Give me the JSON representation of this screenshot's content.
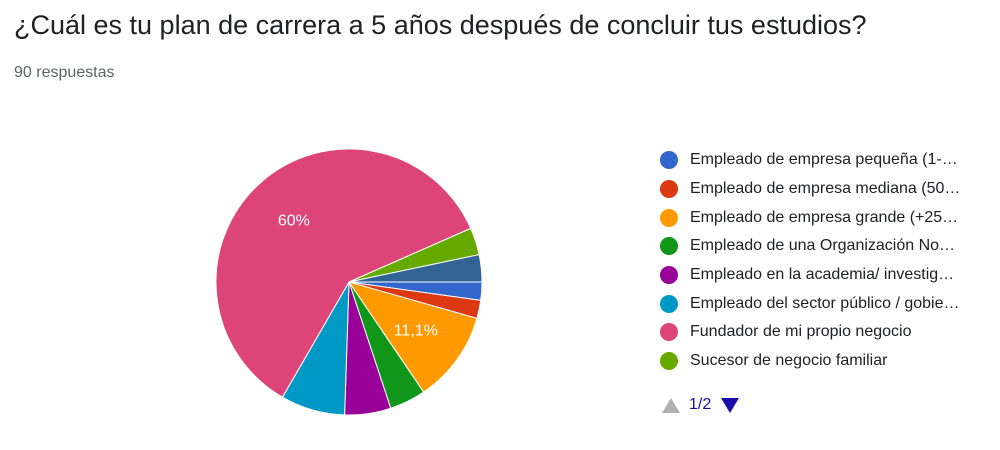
{
  "question": {
    "title": "¿Cuál es tu plan de carrera a 5 años después de concluir tus estudios?",
    "responses": "90 respuestas"
  },
  "chart_data": {
    "type": "pie",
    "slices": [
      {
        "label": "Empleado de empresa pequeña (1-…",
        "value": 2.2,
        "color": "#3366cc"
      },
      {
        "label": "Empleado de empresa mediana (50…",
        "value": 2.2,
        "color": "#dc3912"
      },
      {
        "label": "Empleado de empresa grande (+25…",
        "value": 11.1,
        "color": "#ff9900",
        "data_label": "11,1%"
      },
      {
        "label": "Empleado de una Organización No…",
        "value": 4.4,
        "color": "#109618"
      },
      {
        "label": "Empleado en la academia/ investig…",
        "value": 5.6,
        "color": "#990099"
      },
      {
        "label": "Empleado del sector público / gobie…",
        "value": 7.8,
        "color": "#0099c6"
      },
      {
        "label": "Fundador de mi propio negocio",
        "value": 60.0,
        "color": "#dd4477",
        "data_label": "60%"
      },
      {
        "label": "Sucesor de negocio familiar",
        "value": 3.3,
        "color": "#66aa00"
      },
      {
        "label": "",
        "value": 3.3,
        "color": "#316395"
      }
    ]
  },
  "pager": {
    "label": "1/2",
    "prev_color": "#b0b0b0",
    "next_color": "#1a0dab"
  }
}
